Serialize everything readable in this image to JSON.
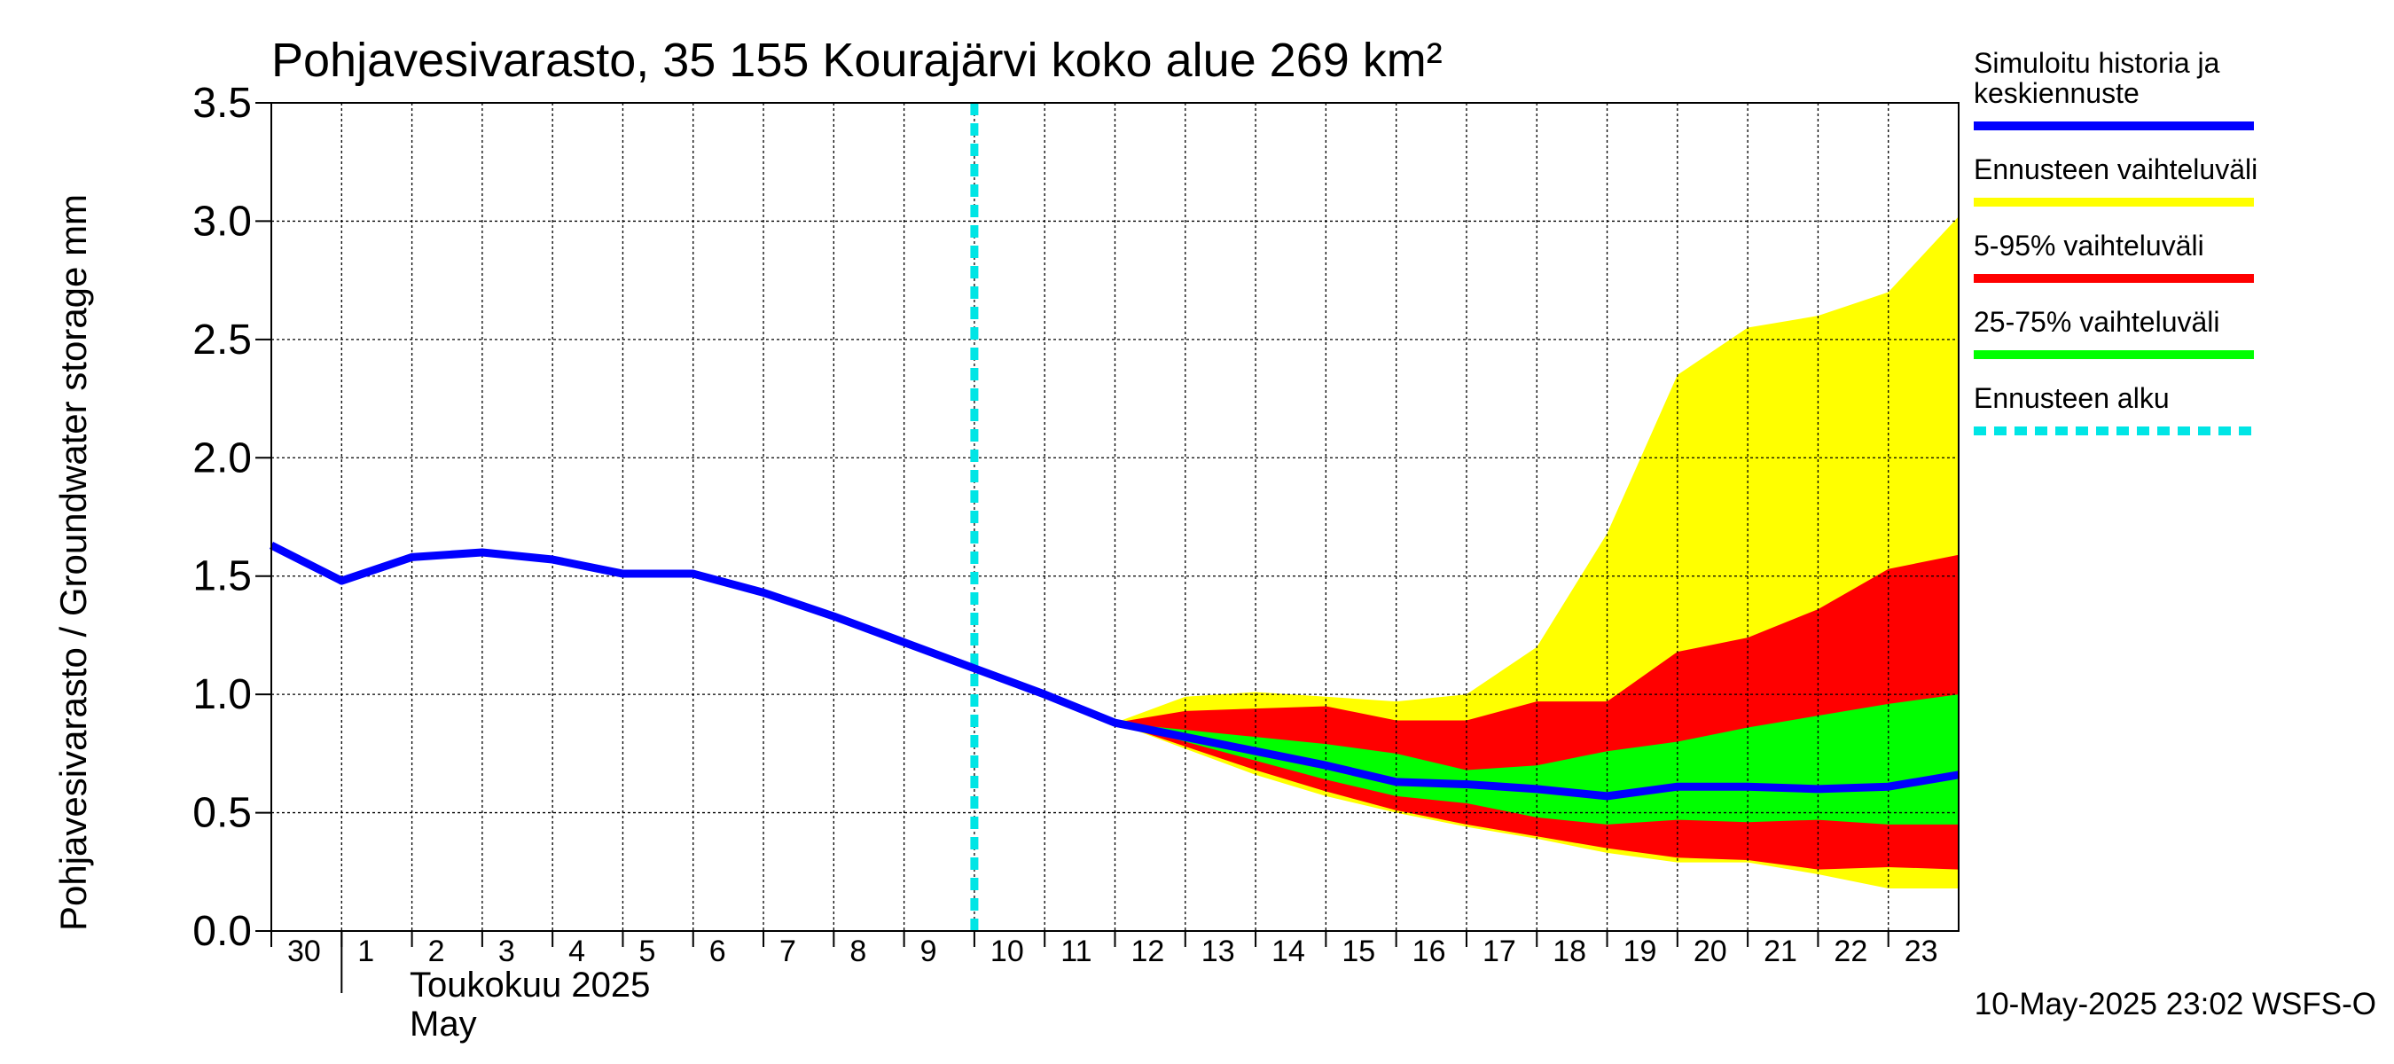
{
  "chart_data": {
    "type": "area",
    "title": "Pohjavesivarasto, 35 155 Kourajärvi koko alue 269 km²",
    "ylabel": "Pohjavesivarasto / Groundwater storage   mm",
    "ylim": [
      0,
      3.5
    ],
    "yticks": [
      {
        "v": 0.0,
        "label": "0.0"
      },
      {
        "v": 0.5,
        "label": "0.5"
      },
      {
        "v": 1.0,
        "label": "1.0"
      },
      {
        "v": 1.5,
        "label": "1.5"
      },
      {
        "v": 2.0,
        "label": "2.0"
      },
      {
        "v": 2.5,
        "label": "2.5"
      },
      {
        "v": 3.0,
        "label": "3.0"
      },
      {
        "v": 3.5,
        "label": "3.5"
      }
    ],
    "xlim": [
      0,
      24
    ],
    "xticks": [
      {
        "x": 0,
        "label": "30"
      },
      {
        "x": 1,
        "label": "1"
      },
      {
        "x": 2,
        "label": "2"
      },
      {
        "x": 3,
        "label": "3"
      },
      {
        "x": 4,
        "label": "4"
      },
      {
        "x": 5,
        "label": "5"
      },
      {
        "x": 6,
        "label": "6"
      },
      {
        "x": 7,
        "label": "7"
      },
      {
        "x": 8,
        "label": "8"
      },
      {
        "x": 9,
        "label": "9"
      },
      {
        "x": 10,
        "label": "10"
      },
      {
        "x": 11,
        "label": "11"
      },
      {
        "x": 12,
        "label": "12"
      },
      {
        "x": 13,
        "label": "13"
      },
      {
        "x": 14,
        "label": "14"
      },
      {
        "x": 15,
        "label": "15"
      },
      {
        "x": 16,
        "label": "16"
      },
      {
        "x": 17,
        "label": "17"
      },
      {
        "x": 18,
        "label": "18"
      },
      {
        "x": 19,
        "label": "19"
      },
      {
        "x": 20,
        "label": "20"
      },
      {
        "x": 21,
        "label": "21"
      },
      {
        "x": 22,
        "label": "22"
      },
      {
        "x": 23,
        "label": "23"
      }
    ],
    "month_label_fi": "Toukokuu  2025",
    "month_label_en": "May",
    "grid": true,
    "legend_position": "right",
    "forecast_start_x": 10,
    "series": [
      {
        "name": "Simuloitu historia ja keskiennuste",
        "kind": "line",
        "color": "#0000ff",
        "x": [
          0,
          1,
          2,
          3,
          4,
          5,
          6,
          7,
          8,
          9,
          10,
          11,
          12,
          13,
          14,
          15,
          16,
          17,
          18,
          19,
          20,
          21,
          22,
          23,
          24
        ],
        "y": [
          1.63,
          1.48,
          1.58,
          1.6,
          1.57,
          1.51,
          1.51,
          1.43,
          1.33,
          1.22,
          1.11,
          1.0,
          0.88,
          0.82,
          0.76,
          0.7,
          0.63,
          0.62,
          0.6,
          0.57,
          0.61,
          0.61,
          0.6,
          0.61,
          0.66
        ]
      },
      {
        "name": "Ennusteen vaihteluväli",
        "kind": "band",
        "color": "#ffff00",
        "x": [
          12,
          13,
          14,
          15,
          16,
          17,
          18,
          19,
          20,
          21,
          22,
          23,
          24
        ],
        "low": [
          0.88,
          0.77,
          0.66,
          0.57,
          0.5,
          0.44,
          0.39,
          0.33,
          0.29,
          0.29,
          0.24,
          0.18,
          0.18
        ],
        "high": [
          0.88,
          0.99,
          1.01,
          0.99,
          0.97,
          1.0,
          1.2,
          1.68,
          2.35,
          2.55,
          2.6,
          2.7,
          3.02
        ]
      },
      {
        "name": "5-95% vaihteluväli",
        "kind": "band",
        "color": "#ff0000",
        "x": [
          12,
          13,
          14,
          15,
          16,
          17,
          18,
          19,
          20,
          21,
          22,
          23,
          24
        ],
        "low": [
          0.88,
          0.78,
          0.68,
          0.59,
          0.51,
          0.45,
          0.4,
          0.35,
          0.31,
          0.3,
          0.26,
          0.27,
          0.26
        ],
        "high": [
          0.88,
          0.93,
          0.94,
          0.95,
          0.89,
          0.89,
          0.97,
          0.97,
          1.18,
          1.24,
          1.36,
          1.53,
          1.59
        ]
      },
      {
        "name": "25-75% vaihteluväli",
        "kind": "band",
        "color": "#00ff00",
        "x": [
          12,
          13,
          14,
          15,
          16,
          17,
          18,
          19,
          20,
          21,
          22,
          23,
          24
        ],
        "low": [
          0.88,
          0.8,
          0.72,
          0.64,
          0.57,
          0.54,
          0.48,
          0.45,
          0.47,
          0.46,
          0.47,
          0.45,
          0.45
        ],
        "high": [
          0.88,
          0.85,
          0.82,
          0.79,
          0.75,
          0.68,
          0.7,
          0.76,
          0.8,
          0.86,
          0.91,
          0.96,
          1.0
        ]
      },
      {
        "name": "Ennusteen alku",
        "kind": "vline",
        "color": "#00e5e5",
        "x": [
          10
        ]
      }
    ],
    "legend": [
      {
        "label_lines": [
          "Simuloitu historia ja",
          "keskiennuste"
        ],
        "color": "#0000ff",
        "style": "solid"
      },
      {
        "label_lines": [
          "Ennusteen vaihteluväli"
        ],
        "color": "#ffff00",
        "style": "solid"
      },
      {
        "label_lines": [
          "5-95% vaihteluväli"
        ],
        "color": "#ff0000",
        "style": "solid"
      },
      {
        "label_lines": [
          "25-75% vaihteluväli"
        ],
        "color": "#00ff00",
        "style": "solid"
      },
      {
        "label_lines": [
          "Ennusteen alku"
        ],
        "color": "#00e5e5",
        "style": "dashed"
      }
    ],
    "footer": "10-May-2025 23:02 WSFS-O"
  }
}
